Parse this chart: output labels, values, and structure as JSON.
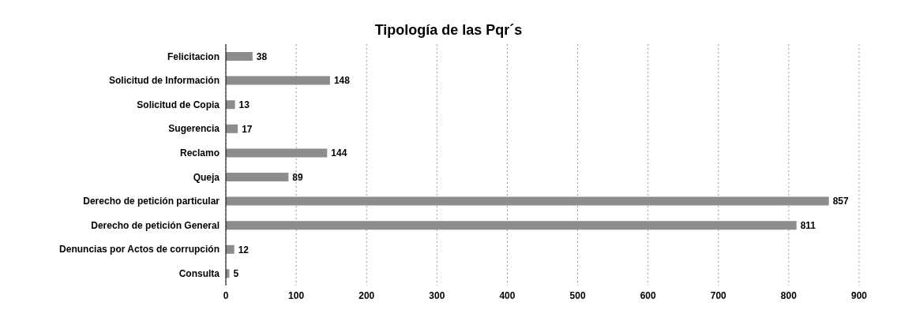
{
  "chart_data": {
    "type": "bar",
    "orientation": "horizontal",
    "title": "Tipología de las Pqr´s",
    "categories": [
      "Felicitacion",
      "Solicitud de Información",
      "Solicitud de Copia",
      "Sugerencia",
      "Reclamo",
      "Queja",
      "Derecho de petición particular",
      "Derecho de petición General",
      "Denuncias por Actos de corrupción",
      "Consulta"
    ],
    "values": [
      38,
      148,
      13,
      17,
      144,
      89,
      857,
      811,
      12,
      5
    ],
    "color": "#8c8c8c",
    "xlim": [
      0,
      900
    ],
    "xticks": [
      0,
      100,
      200,
      300,
      400,
      500,
      600,
      700,
      800,
      900
    ],
    "grid": "x",
    "data_labels": true
  }
}
